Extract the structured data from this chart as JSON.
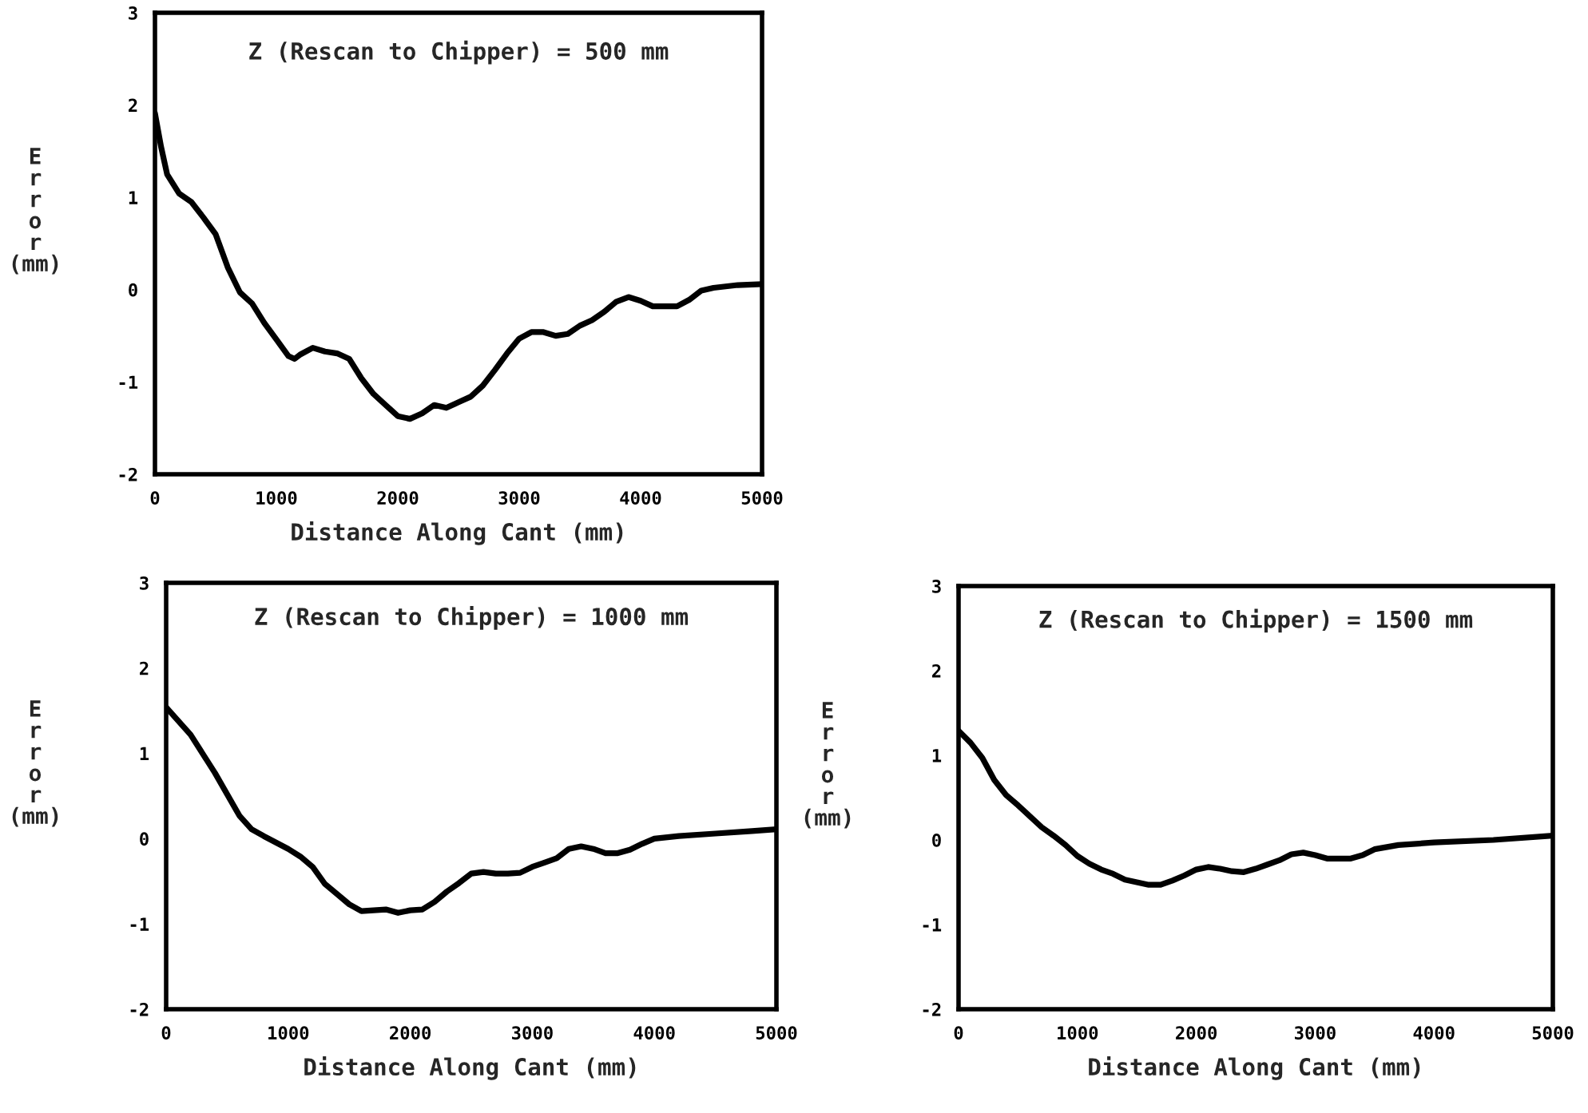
{
  "chart_data": [
    {
      "type": "line",
      "title": "Z (Rescan to Chipper) = 500 mm",
      "xlabel": "Distance Along Cant (mm)",
      "ylabel": "E\nr\nr\no\nr\n(mm)",
      "xlim": [
        0,
        5000
      ],
      "ylim": [
        -2,
        3
      ],
      "xticks": [
        0,
        1000,
        2000,
        3000,
        4000,
        5000
      ],
      "yticks": [
        -2,
        -1,
        0,
        1,
        2,
        3
      ],
      "series": [
        {
          "color": "#000000",
          "x": [
            0,
            50,
            100,
            200,
            300,
            400,
            500,
            600,
            700,
            800,
            900,
            1000,
            1100,
            1150,
            1200,
            1300,
            1400,
            1500,
            1600,
            1700,
            1800,
            1900,
            2000,
            2100,
            2200,
            2300,
            2400,
            2500,
            2600,
            2700,
            2800,
            2900,
            3000,
            3100,
            3200,
            3300,
            3400,
            3500,
            3600,
            3700,
            3800,
            3900,
            4000,
            4100,
            4200,
            4300,
            4400,
            4500,
            4600,
            4800,
            5000
          ],
          "values": [
            1.91,
            1.55,
            1.25,
            1.04,
            0.95,
            0.78,
            0.6,
            0.24,
            -0.03,
            -0.15,
            -0.36,
            -0.54,
            -0.72,
            -0.75,
            -0.7,
            -0.63,
            -0.67,
            -0.69,
            -0.75,
            -0.96,
            -1.13,
            -1.25,
            -1.37,
            -1.4,
            -1.34,
            -1.25,
            -1.28,
            -1.22,
            -1.16,
            -1.04,
            -0.87,
            -0.69,
            -0.53,
            -0.46,
            -0.46,
            -0.5,
            -0.48,
            -0.39,
            -0.33,
            -0.24,
            -0.13,
            -0.08,
            -0.12,
            -0.18,
            -0.18,
            -0.18,
            -0.11,
            -0.01,
            0.02,
            0.05,
            0.06
          ]
        }
      ]
    },
    {
      "type": "line",
      "title": "Z (Rescan to Chipper) = 1000 mm",
      "xlabel": "Distance Along Cant (mm)",
      "ylabel": "E\nr\nr\no\nr\n(mm)",
      "xlim": [
        0,
        5000
      ],
      "ylim": [
        -2,
        3
      ],
      "xticks": [
        0,
        1000,
        2000,
        3000,
        4000,
        5000
      ],
      "yticks": [
        -2,
        -1,
        0,
        1,
        2,
        3
      ],
      "series": [
        {
          "color": "#000000",
          "x": [
            0,
            200,
            400,
            600,
            700,
            800,
            1000,
            1100,
            1200,
            1300,
            1400,
            1500,
            1600,
            1700,
            1800,
            1900,
            2000,
            2100,
            2200,
            2300,
            2400,
            2500,
            2600,
            2700,
            2800,
            2900,
            3000,
            3100,
            3200,
            3300,
            3400,
            3500,
            3600,
            3700,
            3800,
            3900,
            4000,
            4200,
            4500,
            4800,
            5000
          ],
          "values": [
            1.54,
            1.22,
            0.77,
            0.27,
            0.11,
            0.03,
            -0.12,
            -0.21,
            -0.33,
            -0.53,
            -0.65,
            -0.77,
            -0.85,
            -0.84,
            -0.83,
            -0.87,
            -0.84,
            -0.83,
            -0.74,
            -0.62,
            -0.52,
            -0.41,
            -0.39,
            -0.41,
            -0.41,
            -0.4,
            -0.33,
            -0.28,
            -0.23,
            -0.12,
            -0.09,
            -0.12,
            -0.17,
            -0.17,
            -0.13,
            -0.06,
            0,
            0.03,
            0.06,
            0.09,
            0.11
          ]
        }
      ]
    },
    {
      "type": "line",
      "title": "Z (Rescan to Chipper) = 1500 mm",
      "xlabel": "Distance Along Cant (mm)",
      "ylabel": "E\nr\nr\no\nr\n(mm)",
      "xlim": [
        0,
        5000
      ],
      "ylim": [
        -2,
        3
      ],
      "xticks": [
        0,
        1000,
        2000,
        3000,
        4000,
        5000
      ],
      "yticks": [
        -2,
        -1,
        0,
        1,
        2,
        3
      ],
      "series": [
        {
          "color": "#000000",
          "x": [
            0,
            100,
            200,
            300,
            400,
            500,
            600,
            700,
            800,
            900,
            1000,
            1100,
            1200,
            1300,
            1400,
            1500,
            1600,
            1700,
            1800,
            1900,
            2000,
            2100,
            2200,
            2300,
            2400,
            2500,
            2600,
            2700,
            2800,
            2900,
            3000,
            3100,
            3200,
            3300,
            3400,
            3500,
            3700,
            4000,
            4500,
            5000
          ],
          "values": [
            1.29,
            1.15,
            0.97,
            0.71,
            0.53,
            0.41,
            0.28,
            0.15,
            0.05,
            -0.06,
            -0.19,
            -0.28,
            -0.35,
            -0.4,
            -0.47,
            -0.5,
            -0.53,
            -0.53,
            -0.48,
            -0.42,
            -0.35,
            -0.32,
            -0.34,
            -0.37,
            -0.38,
            -0.34,
            -0.29,
            -0.24,
            -0.17,
            -0.15,
            -0.18,
            -0.22,
            -0.22,
            -0.22,
            -0.18,
            -0.11,
            -0.06,
            -0.03,
            0,
            0.05
          ]
        }
      ]
    }
  ]
}
